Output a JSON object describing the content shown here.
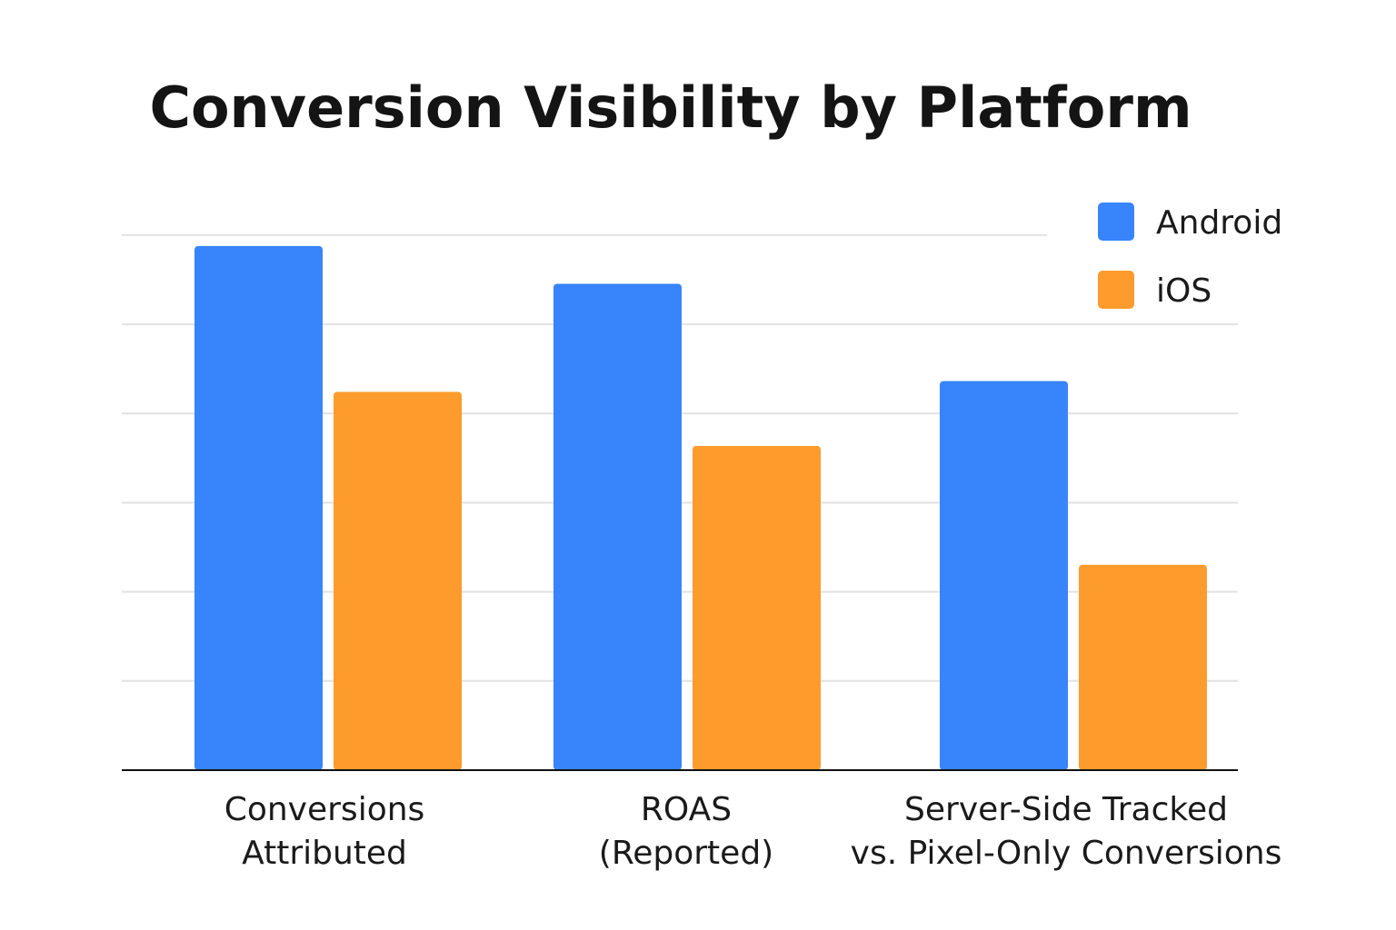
{
  "chart_data": {
    "type": "bar",
    "title": "Conversion Visibility by Platform",
    "categories": [
      [
        "Conversions",
        "Attributed"
      ],
      [
        "ROAS",
        "(Reported)"
      ],
      [
        "Server-Side Tracked",
        "vs. Pixel-Only Conversions"
      ]
    ],
    "series": [
      {
        "name": "Android",
        "color": "#3784fb",
        "values": [
          97,
          90,
          72
        ]
      },
      {
        "name": "iOS",
        "color": "#fd9b2d",
        "values": [
          70,
          60,
          38
        ]
      }
    ],
    "xlabel": "",
    "ylabel": "",
    "ylim": [
      0,
      100
    ],
    "grid": true,
    "legend": "top-right"
  }
}
